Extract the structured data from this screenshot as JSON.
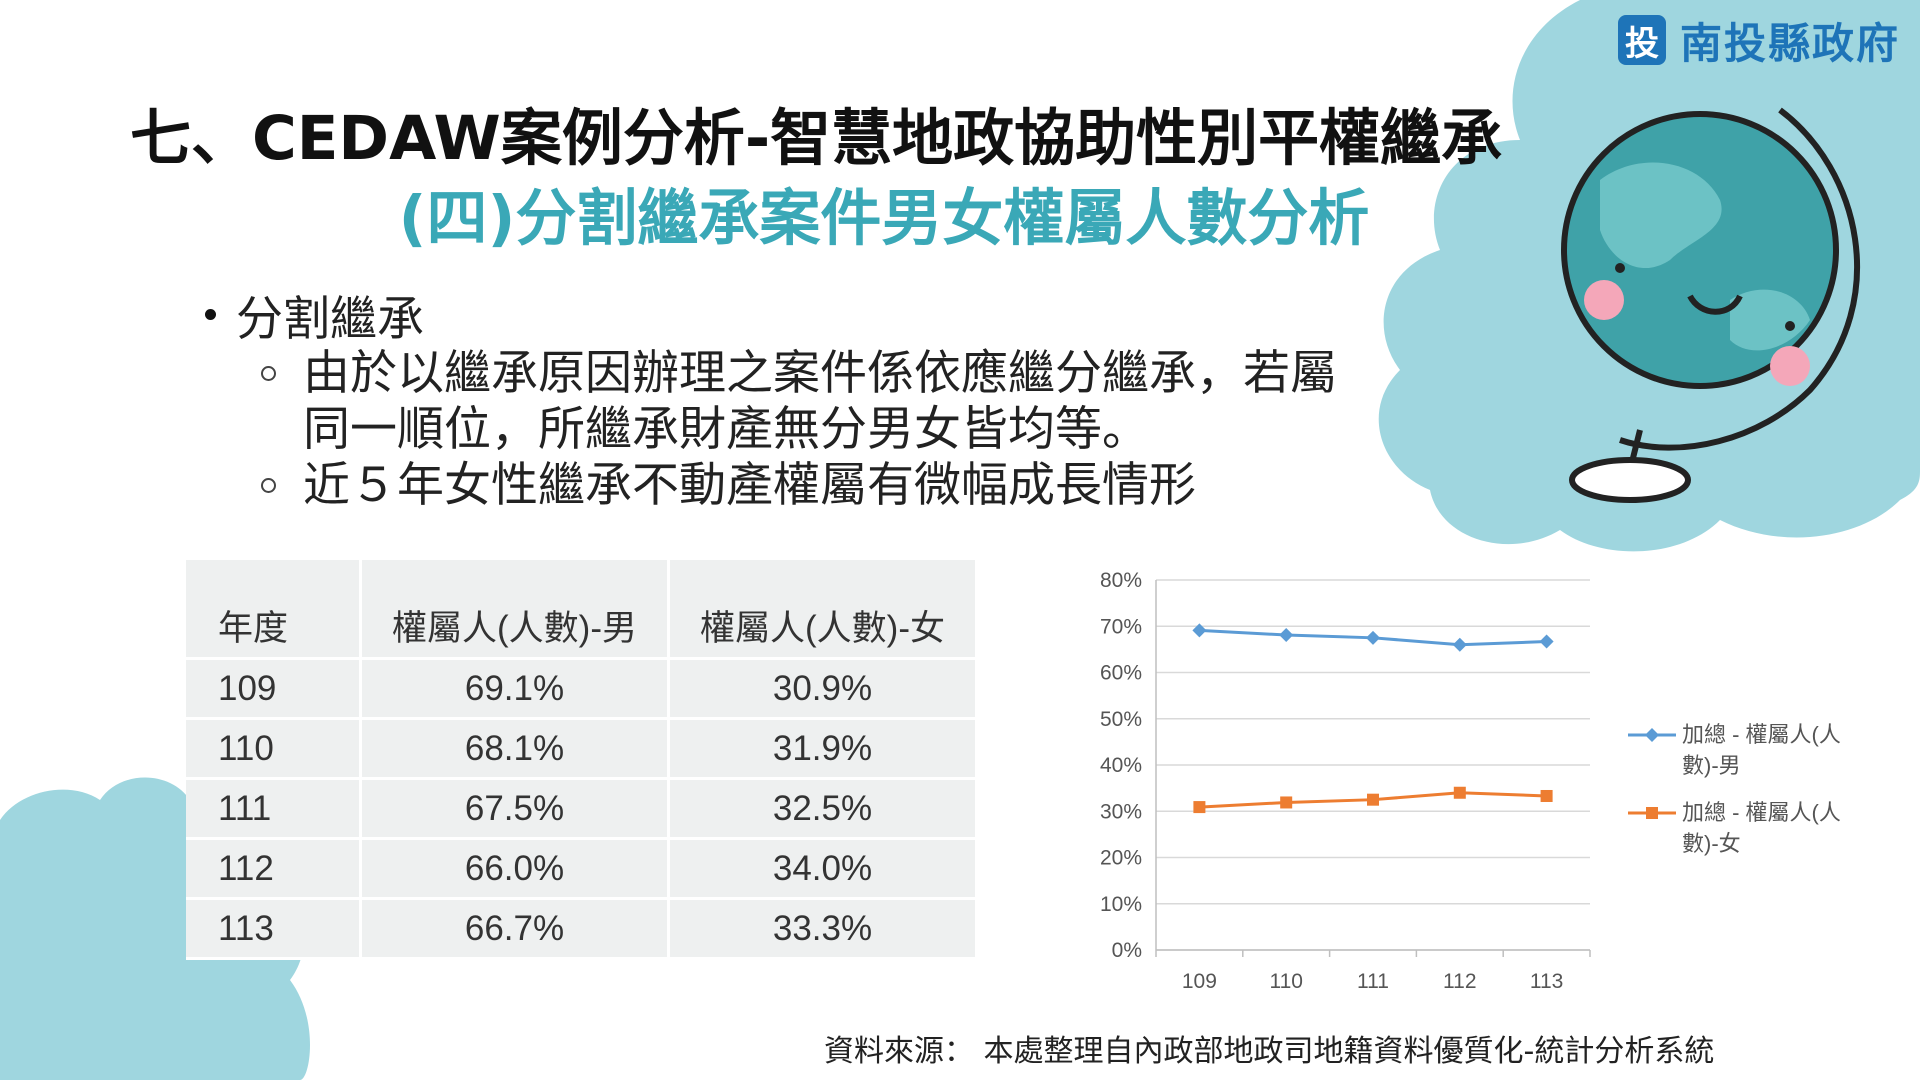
{
  "logo": {
    "mark": "投",
    "text": "南投縣政府"
  },
  "title": "七、CEDAW案例分析-智慧地政協助性別平權繼承",
  "subtitle": "(四)分割繼承案件男女權屬人數分析",
  "bullets": {
    "main": "分割繼承",
    "sub1_line1": "由於以繼承原因辦理之案件係依應繼分繼承，若屬",
    "sub1_line2": "同一順位，所繼承財產無分男女皆均等。",
    "sub2": "近５年女性繼承不動產權屬有微幅成長情形"
  },
  "table": {
    "headers": [
      "年度",
      "權屬人(人數)-男",
      "權屬人(人數)-女"
    ],
    "rows": [
      [
        "109",
        "69.1%",
        "30.9%"
      ],
      [
        "110",
        "68.1%",
        "31.9%"
      ],
      [
        "111",
        "67.5%",
        "32.5%"
      ],
      [
        "112",
        "66.0%",
        "34.0%"
      ],
      [
        "113",
        "66.7%",
        "33.3%"
      ]
    ]
  },
  "chart_data": {
    "type": "line",
    "categories": [
      "109",
      "110",
      "111",
      "112",
      "113"
    ],
    "series": [
      {
        "name": "加總 - 權屬人(人數)-男",
        "values": [
          69.1,
          68.1,
          67.5,
          66.0,
          66.7
        ],
        "color": "#5b9bd5",
        "marker": "diamond"
      },
      {
        "name": "加總 - 權屬人(人數)-女",
        "values": [
          30.9,
          31.9,
          32.5,
          34.0,
          33.3
        ],
        "color": "#ed7d31",
        "marker": "square"
      }
    ],
    "yticks": [
      "0%",
      "10%",
      "20%",
      "30%",
      "40%",
      "50%",
      "60%",
      "70%",
      "80%"
    ],
    "ylim": [
      0,
      80
    ],
    "grid": true,
    "legend": "right"
  },
  "source": "資料來源：  本處整理自內政部地政司地籍資料優質化-統計分析系統"
}
